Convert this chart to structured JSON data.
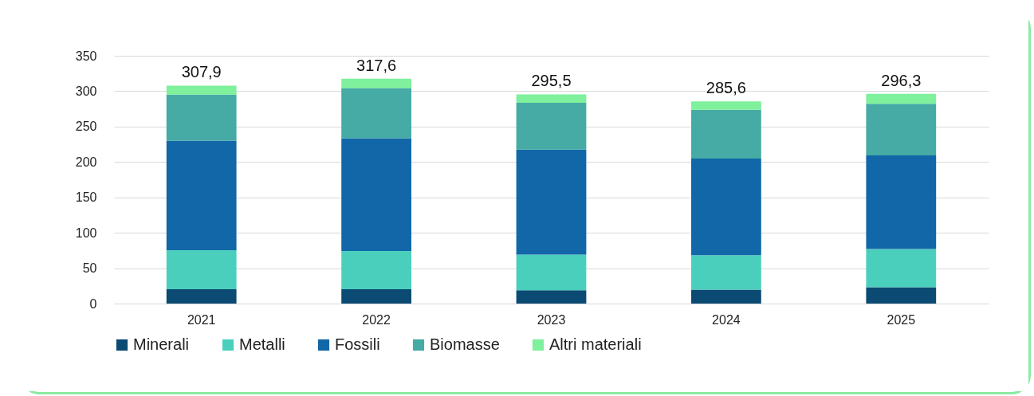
{
  "chart_data": {
    "type": "bar",
    "stacked": true,
    "categories": [
      "2021",
      "2022",
      "2023",
      "2024",
      "2025"
    ],
    "series": [
      {
        "name": "Minerali",
        "color": "#0b4a73",
        "values": [
          20.2,
          20.2,
          18.8,
          19.6,
          23.2
        ]
      },
      {
        "name": "Metalli",
        "color": "#4bcfbd",
        "values": [
          55.2,
          54.0,
          50.4,
          48.7,
          54.0
        ]
      },
      {
        "name": "Fossili",
        "color": "#1167a8",
        "values": [
          154.8,
          159.3,
          148.2,
          136.6,
          132.2
        ]
      },
      {
        "name": "Biomasse",
        "color": "#45aba4",
        "values": [
          65.0,
          70.9,
          66.1,
          68.8,
          72.7
        ]
      },
      {
        "name": "Altri materiali",
        "color": "#7ff09b",
        "values": [
          12.7,
          13.2,
          12.0,
          11.9,
          14.2
        ]
      }
    ],
    "totals": [
      "307,9",
      "317,6",
      "295,5",
      "285,6",
      "296,3"
    ],
    "ylim": [
      0,
      350
    ],
    "yticks": [
      0,
      50,
      100,
      150,
      200,
      250,
      300,
      350
    ],
    "grid": "y",
    "legend": "bottom"
  }
}
